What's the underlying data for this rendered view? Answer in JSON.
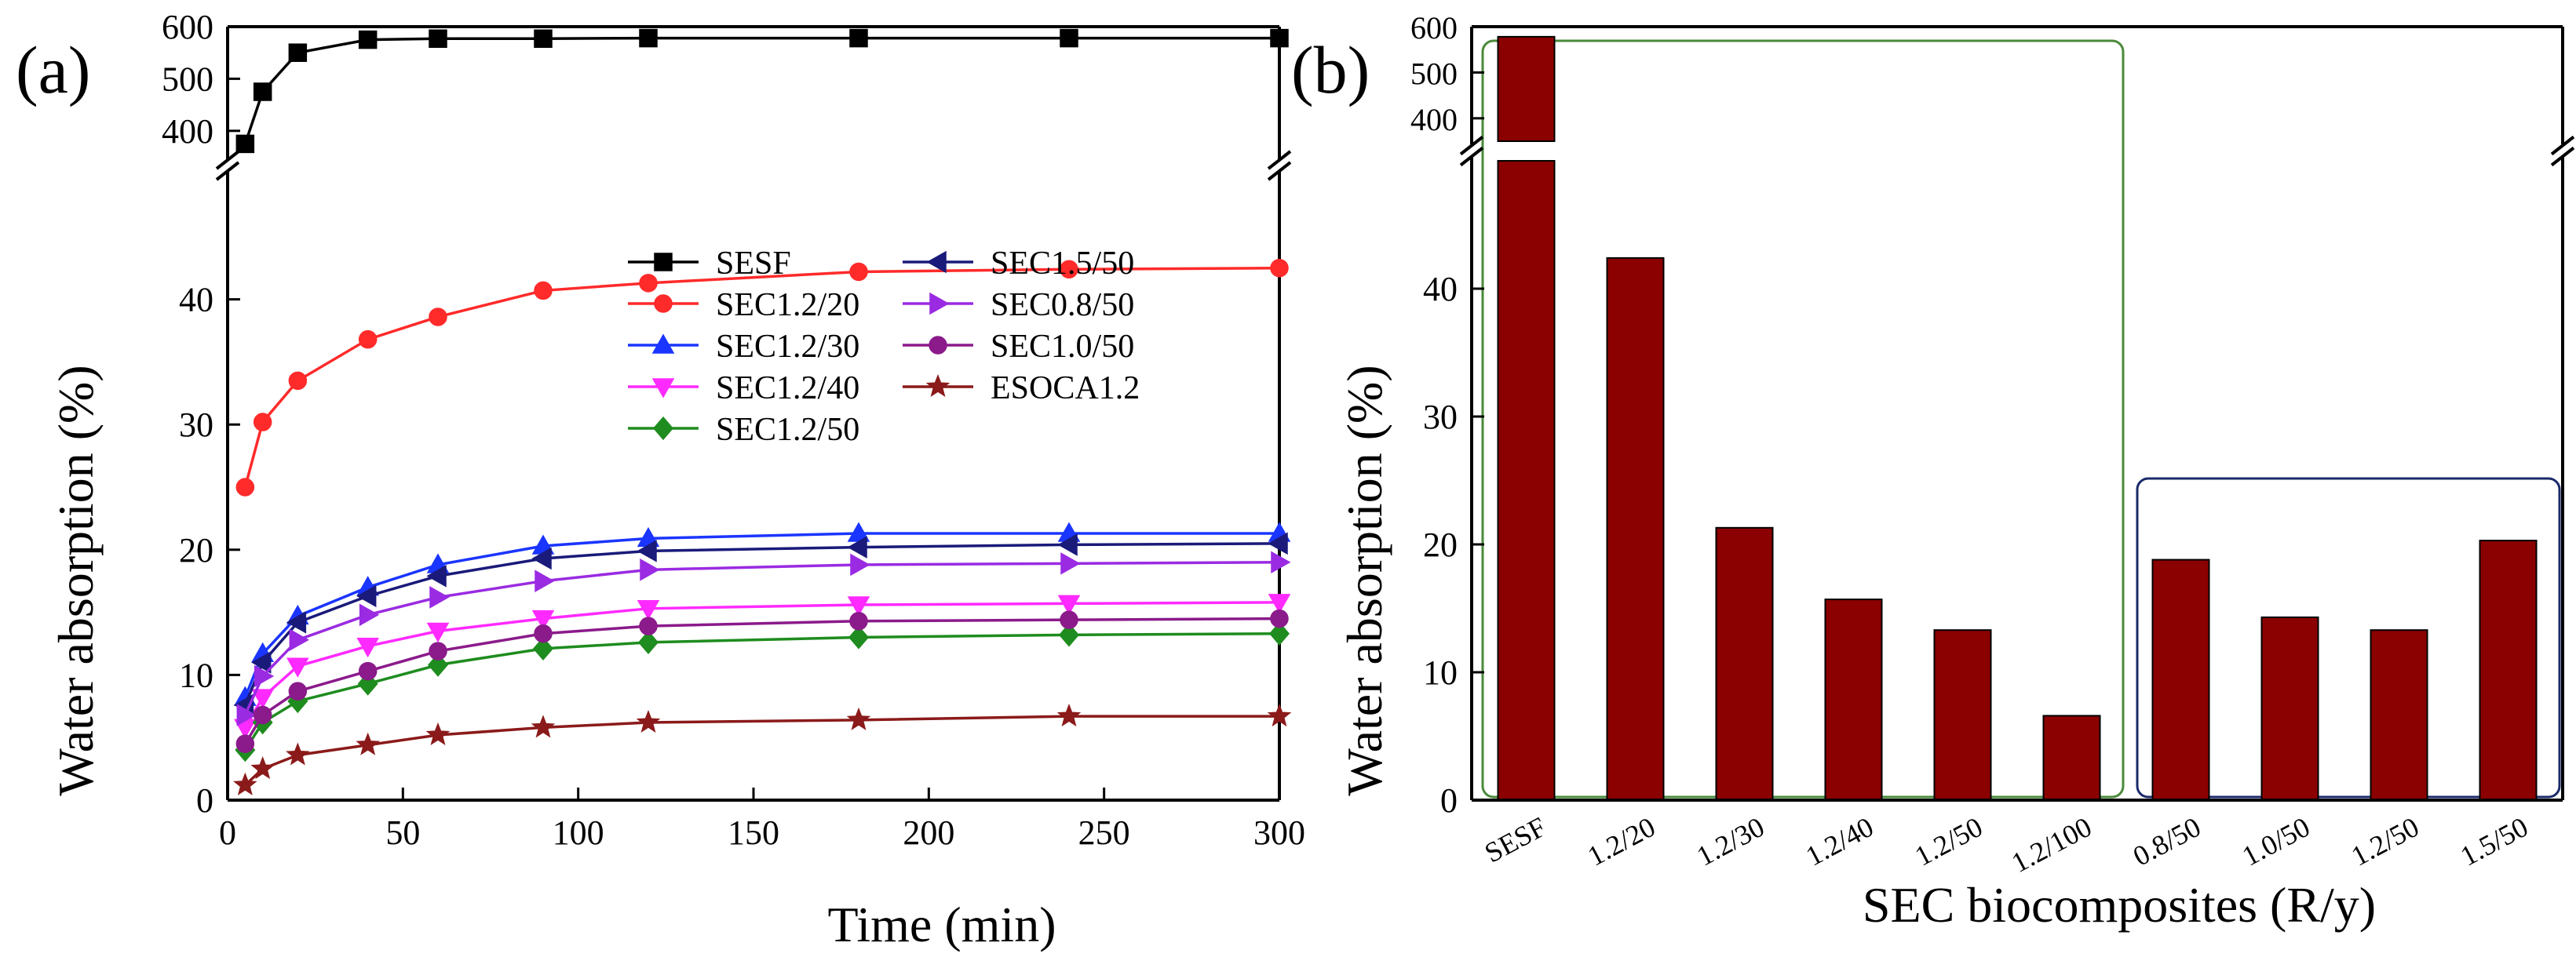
{
  "chart_data": [
    {
      "panel_label": "(a)",
      "type": "line",
      "xlabel": "Time (min)",
      "ylabel": "Water absorption (%)",
      "xlim": [
        0,
        300
      ],
      "ylim_lower": [
        0,
        50
      ],
      "ylim_upper": [
        350,
        600
      ],
      "x_ticks": [
        "0",
        "50",
        "100",
        "150",
        "200",
        "250",
        "300"
      ],
      "y_ticks_lower": [
        "0",
        "10",
        "20",
        "30",
        "40"
      ],
      "y_ticks_upper": [
        "400",
        "500",
        "600"
      ],
      "x": [
        5,
        10,
        20,
        40,
        60,
        90,
        120,
        180,
        240,
        300
      ],
      "series": [
        {
          "name": "SESF",
          "color": "#000000",
          "marker": "square",
          "values": [
            375,
            475,
            550,
            575,
            577,
            577,
            578,
            578,
            578,
            578
          ]
        },
        {
          "name": "SEC1.2/20",
          "color": "#ff2a2a",
          "marker": "circle",
          "values": [
            25.0,
            30.2,
            33.5,
            36.8,
            38.6,
            40.7,
            41.3,
            42.2,
            42.4,
            42.5
          ]
        },
        {
          "name": "SEC1.2/30",
          "color": "#1a35ff",
          "marker": "triangle-up",
          "values": [
            8.2,
            11.7,
            14.7,
            17.0,
            18.8,
            20.3,
            20.9,
            21.3,
            21.3,
            21.3
          ]
        },
        {
          "name": "SEC1.2/40",
          "color": "#ff2aff",
          "marker": "triangle-down",
          "values": [
            5.8,
            8.2,
            10.7,
            12.3,
            13.5,
            14.5,
            15.3,
            15.6,
            15.7,
            15.8
          ]
        },
        {
          "name": "SEC1.2/50",
          "color": "#1e8c1e",
          "marker": "diamond",
          "values": [
            4.0,
            6.2,
            7.9,
            9.3,
            10.8,
            12.1,
            12.6,
            13.0,
            13.2,
            13.3
          ]
        },
        {
          "name": "SEC1.5/50",
          "color": "#1a1a7a",
          "marker": "triangle-left",
          "values": [
            7.6,
            11.0,
            14.2,
            16.3,
            17.9,
            19.3,
            19.9,
            20.2,
            20.4,
            20.5
          ]
        },
        {
          "name": "SEC0.8/50",
          "color": "#9a2be2",
          "marker": "triangle-right",
          "values": [
            6.8,
            9.9,
            12.8,
            14.8,
            16.2,
            17.5,
            18.4,
            18.8,
            18.9,
            19.0
          ]
        },
        {
          "name": "SEC1.0/50",
          "color": "#8b1a8b",
          "marker": "circle",
          "values": [
            4.5,
            6.8,
            8.7,
            10.3,
            11.9,
            13.3,
            13.9,
            14.3,
            14.4,
            14.5
          ]
        },
        {
          "name": "ESOCA1.2",
          "color": "#8b1a1a",
          "marker": "star",
          "values": [
            1.2,
            2.5,
            3.6,
            4.4,
            5.2,
            5.8,
            6.2,
            6.4,
            6.7,
            6.7
          ]
        }
      ]
    },
    {
      "panel_label": "(b)",
      "type": "bar",
      "xlabel": "SEC biocomposites (R/y)",
      "ylabel": "Water absorption (%)",
      "ylim_lower": [
        0,
        50
      ],
      "ylim_upper": [
        350,
        600
      ],
      "y_ticks_lower": [
        "0",
        "10",
        "20",
        "30",
        "40"
      ],
      "y_ticks_upper": [
        "400",
        "500",
        "600"
      ],
      "bar_color": "#8b0000",
      "categories": [
        "SESF",
        "1.2/20",
        "1.2/30",
        "1.2/40",
        "1.2/50",
        "1.2/100",
        "0.8/50",
        "1.0/50",
        "1.2/50",
        "1.5/50"
      ],
      "values": [
        578,
        42.4,
        21.3,
        15.7,
        13.3,
        6.6,
        18.8,
        14.3,
        13.3,
        20.3
      ],
      "group_boxes": [
        {
          "name": "ratio-group",
          "color": "#4a8a3a",
          "categories": [
            "SESF",
            "1.2/20",
            "1.2/30",
            "1.2/40",
            "1.2/50",
            "1.2/100"
          ]
        },
        {
          "name": "ratio-y50-group",
          "color": "#1a2a6a",
          "categories": [
            "0.8/50",
            "1.0/50",
            "1.2/50",
            "1.5/50"
          ]
        }
      ]
    }
  ]
}
